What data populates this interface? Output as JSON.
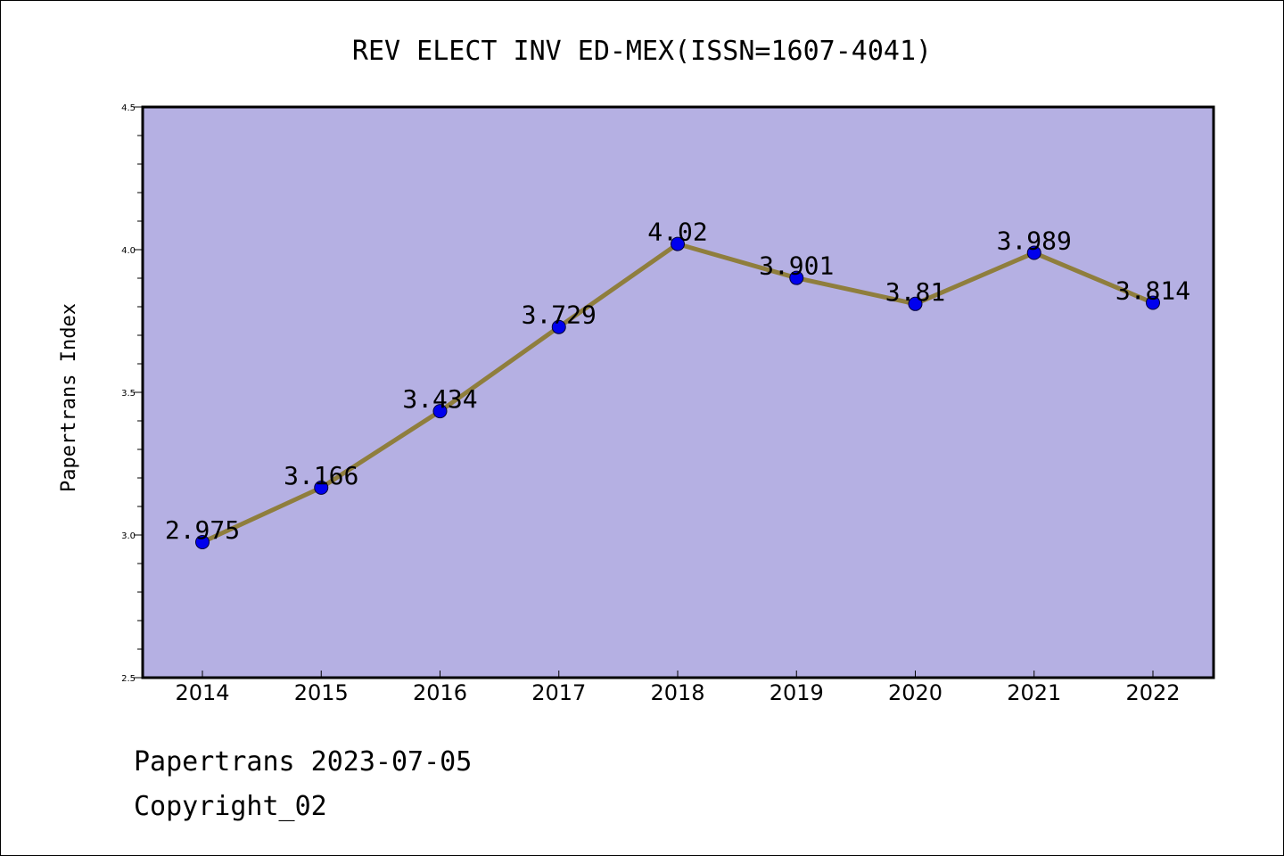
{
  "chart_data": {
    "type": "line",
    "title": "REV ELECT INV ED-MEX(ISSN=1607-4041)",
    "xlabel": "",
    "ylabel": "Papertrans Index",
    "categories": [
      "2014",
      "2015",
      "2016",
      "2017",
      "2018",
      "2019",
      "2020",
      "2021",
      "2022"
    ],
    "series": [
      {
        "values": [
          2.975,
          3.166,
          3.434,
          3.729,
          4.02,
          3.901,
          3.81,
          3.989,
          3.814
        ],
        "labels": [
          "2.975",
          "3.166",
          "3.434",
          "3.729",
          "4.02",
          "3.901",
          "3.81",
          "3.989",
          "3.814"
        ]
      }
    ],
    "ylim": [
      2.5,
      4.5
    ],
    "yticks": [
      "2.5",
      "3.0",
      "3.5",
      "4.0",
      "4.5"
    ],
    "grid": false,
    "legend": "none",
    "colors": {
      "plot_background": "#b5b0e3",
      "line": "#8f7e3d",
      "marker": "#0000ee",
      "axis": "#000000"
    }
  },
  "footer": {
    "line1": "Papertrans 2023-07-05",
    "line2": "Copyright_02"
  }
}
